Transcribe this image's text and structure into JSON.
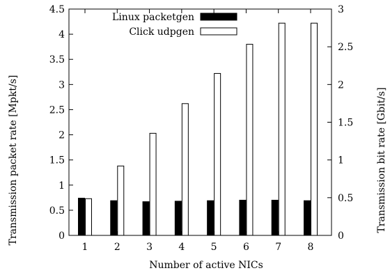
{
  "chart_data": {
    "type": "bar",
    "categories": [
      "1",
      "2",
      "3",
      "4",
      "5",
      "6",
      "7",
      "8"
    ],
    "series": [
      {
        "name": "Linux packetgen",
        "values": [
          0.74,
          0.69,
          0.67,
          0.68,
          0.69,
          0.7,
          0.7,
          0.69
        ],
        "fill": "#000000"
      },
      {
        "name": "Click udpgen",
        "values": [
          0.73,
          1.38,
          2.03,
          2.62,
          3.22,
          3.8,
          4.22,
          4.22
        ],
        "fill": "#ffffff"
      }
    ],
    "xlabel": "Number of active NICs",
    "ylabel": "Transmission packet rate [Mpkt/s]",
    "y2label": "Transmission bit rate [Gbit/s]",
    "ylim": [
      0,
      4.5
    ],
    "y2lim": [
      0,
      3
    ],
    "yticks": [
      "0",
      "0.5",
      "1",
      "1.5",
      "2",
      "2.5",
      "3",
      "3.5",
      "4",
      "4.5"
    ],
    "y2ticks": [
      "0",
      "0.5",
      "1",
      "1.5",
      "2",
      "2.5",
      "3"
    ],
    "grid": false,
    "legend_position": "top-center"
  }
}
